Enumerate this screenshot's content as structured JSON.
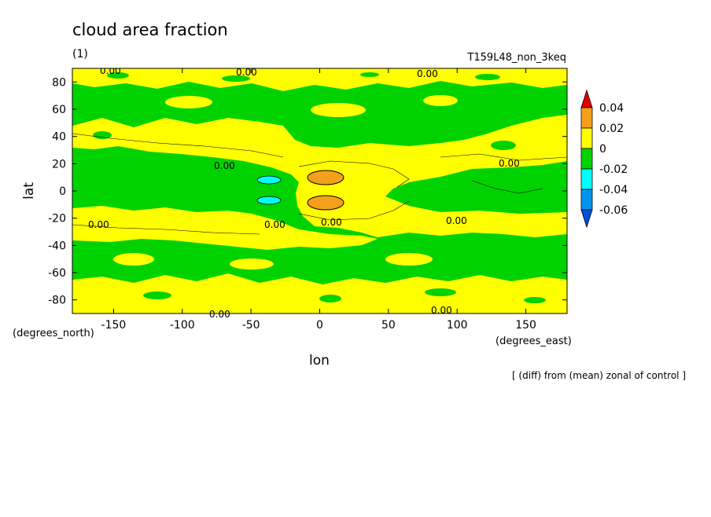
{
  "chart_data": {
    "type": "heatmap",
    "title": "cloud area fraction",
    "subtitle": "(1)",
    "run_label": "T159L48_non_3keq",
    "xlabel": "lon",
    "ylabel": "lat",
    "x_unit": "(degrees_east)",
    "y_unit": "(degrees_north)",
    "note": "[ (diff) from (mean) zonal of control ]",
    "xlim": [
      -180,
      180
    ],
    "ylim": [
      -90,
      90
    ],
    "x_ticks": [
      -150,
      -100,
      -50,
      0,
      50,
      100,
      150
    ],
    "y_ticks": [
      80,
      60,
      40,
      20,
      0,
      -20,
      -40,
      -60,
      -80
    ],
    "contour_label": "0.00",
    "colorbar": {
      "levels": [
        0.04,
        0.02,
        0,
        -0.02,
        -0.04,
        -0.06
      ],
      "bins": [
        {
          "range": [
            0.04,
            null
          ],
          "color": "#e60000"
        },
        {
          "range": [
            0.02,
            0.04
          ],
          "color": "#f5a01a"
        },
        {
          "range": [
            0.0,
            0.02
          ],
          "color": "#ffff00"
        },
        {
          "range": [
            -0.02,
            0.0
          ],
          "color": "#00d200"
        },
        {
          "range": [
            -0.04,
            -0.02
          ],
          "color": "#00ffff"
        },
        {
          "range": [
            -0.06,
            -0.04
          ],
          "color": "#0096f0"
        },
        {
          "range": [
            null,
            -0.06
          ],
          "color": "#0050e0"
        }
      ]
    },
    "regions": [
      {
        "sign": "positive",
        "lon": [
          -180,
          180
        ],
        "lat": [
          75,
          90
        ]
      },
      {
        "sign": "negative",
        "lon": [
          -180,
          180
        ],
        "lat": [
          45,
          75
        ]
      },
      {
        "sign": "positive",
        "lon": [
          -180,
          -20
        ],
        "lat": [
          15,
          40
        ]
      },
      {
        "sign": "negative",
        "lon": [
          -180,
          -20
        ],
        "lat": [
          -15,
          15
        ]
      },
      {
        "sign": "positive",
        "lon": [
          -20,
          60
        ],
        "lat": [
          -25,
          25
        ]
      },
      {
        "sign": "negative",
        "lon": [
          60,
          180
        ],
        "lat": [
          -15,
          15
        ]
      },
      {
        "sign": "positive",
        "lon": [
          -180,
          180
        ],
        "lat": [
          -45,
          -15
        ]
      },
      {
        "sign": "negative",
        "lon": [
          -180,
          180
        ],
        "lat": [
          -75,
          -45
        ]
      },
      {
        "sign": "positive",
        "lon": [
          -180,
          180
        ],
        "lat": [
          -90,
          -75
        ]
      }
    ],
    "extremes": [
      {
        "level": "0.02 to 0.04",
        "lon": 5,
        "lat": 8
      },
      {
        "level": "0.02 to 0.04",
        "lon": 5,
        "lat": -9
      },
      {
        "level": "-0.04 to -0.02",
        "lon": -38,
        "lat": 6
      },
      {
        "level": "-0.04 to -0.02",
        "lon": -38,
        "lat": -8
      }
    ]
  }
}
